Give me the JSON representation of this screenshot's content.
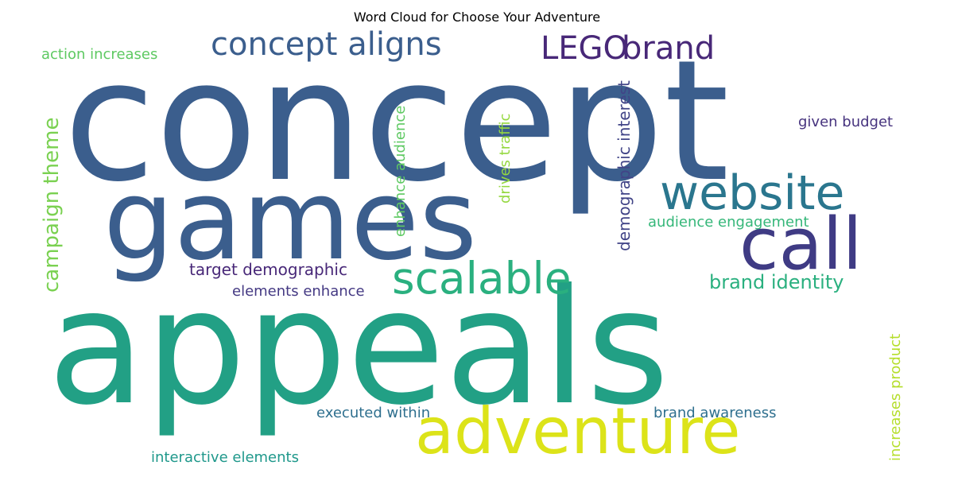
{
  "chart_data": {
    "type": "wordcloud",
    "title": "Word Cloud for Choose Your Adventure",
    "words": [
      {
        "text": "concept",
        "weight": 1.0,
        "color": "#3b5e8d"
      },
      {
        "text": "appeals",
        "weight": 0.98,
        "color": "#22a085"
      },
      {
        "text": "games",
        "weight": 0.7,
        "color": "#3b5e8d"
      },
      {
        "text": "adventure",
        "weight": 0.4,
        "color": "#dce319"
      },
      {
        "text": "call",
        "weight": 0.36,
        "color": "#3f3b84"
      },
      {
        "text": "website",
        "weight": 0.28,
        "color": "#2a768e"
      },
      {
        "text": "scalable",
        "weight": 0.24,
        "color": "#2ab07f"
      },
      {
        "text": "concept aligns",
        "weight": 0.16,
        "color": "#3b5e8d"
      },
      {
        "text": "LEGO",
        "weight": 0.16,
        "color": "#482878"
      },
      {
        "text": "brand",
        "weight": 0.16,
        "color": "#482878"
      },
      {
        "text": "campaign theme",
        "weight": 0.12,
        "color": "#7ad151"
      },
      {
        "text": "brand identity",
        "weight": 0.11,
        "color": "#2ab07f"
      },
      {
        "text": "demographic interest",
        "weight": 0.1,
        "color": "#414487"
      },
      {
        "text": "target demographic",
        "weight": 0.09,
        "color": "#482878"
      },
      {
        "text": "enhance audience",
        "weight": 0.08,
        "color": "#5ec962"
      },
      {
        "text": "action increases",
        "weight": 0.07,
        "color": "#5ec962"
      },
      {
        "text": "drives traffic",
        "weight": 0.07,
        "color": "#95d840"
      },
      {
        "text": "given budget",
        "weight": 0.07,
        "color": "#46337e"
      },
      {
        "text": "audience engagement",
        "weight": 0.07,
        "color": "#35b779"
      },
      {
        "text": "elements enhance",
        "weight": 0.07,
        "color": "#443983"
      },
      {
        "text": "increases product",
        "weight": 0.07,
        "color": "#b5de2b"
      },
      {
        "text": "executed within",
        "weight": 0.07,
        "color": "#2e6f8e"
      },
      {
        "text": "brand awareness",
        "weight": 0.07,
        "color": "#2e6f8e"
      },
      {
        "text": "interactive elements",
        "weight": 0.07,
        "color": "#1f988b"
      }
    ]
  }
}
